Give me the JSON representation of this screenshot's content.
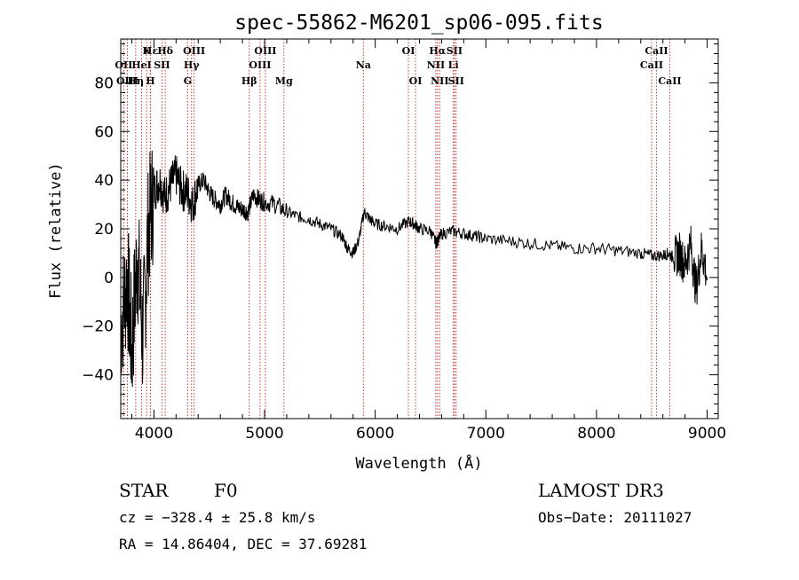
{
  "chart_data": {
    "type": "line",
    "title": "spec-55862-M6201_sp06-095.fits",
    "xlabel": "Wavelength (Å)",
    "ylabel": "Flux (relative)",
    "xlim": [
      3700,
      9100
    ],
    "ylim": [
      -58,
      98
    ],
    "x_ticks": [
      4000,
      5000,
      6000,
      7000,
      8000,
      9000
    ],
    "y_ticks": [
      -40,
      -20,
      0,
      20,
      40,
      60,
      80
    ],
    "series": [
      {
        "name": "flux",
        "color": "#000000",
        "x": [
          3700,
          3760,
          3800,
          3850,
          3900,
          3950,
          4000,
          4050,
          4100,
          4150,
          4200,
          4250,
          4300,
          4350,
          4400,
          4450,
          4500,
          4550,
          4600,
          4650,
          4700,
          4750,
          4800,
          4850,
          4900,
          4950,
          5000,
          5100,
          5200,
          5300,
          5400,
          5500,
          5600,
          5700,
          5750,
          5800,
          5850,
          5900,
          5950,
          6000,
          6100,
          6200,
          6300,
          6350,
          6400,
          6500,
          6550,
          6563,
          6600,
          6700,
          6800,
          6900,
          7000,
          7200,
          7400,
          7600,
          7800,
          8000,
          8200,
          8400,
          8500,
          8600,
          8650,
          8700,
          8750,
          8800,
          8850,
          8900,
          8950,
          9000
        ],
        "values": [
          -20,
          0,
          -30,
          10,
          -25,
          20,
          35,
          40,
          33,
          38,
          42,
          36,
          35,
          30,
          38,
          40,
          35,
          32,
          30,
          34,
          31,
          29,
          28,
          27,
          34,
          32,
          31,
          30,
          27,
          25,
          24,
          22,
          20,
          17,
          12,
          10,
          15,
          27,
          24,
          22,
          21,
          20,
          23,
          22,
          20,
          19,
          14,
          15,
          18,
          19,
          18,
          17,
          16,
          15,
          14,
          13,
          12,
          12,
          11,
          10,
          9,
          9,
          10,
          8,
          10,
          5,
          14,
          -5,
          12,
          0
        ]
      }
    ],
    "spectral_lines": [
      {
        "label": "Hε",
        "wavelength": 3970,
        "row": 1
      },
      {
        "label": "OII",
        "wavelength": 3727,
        "row": 2
      },
      {
        "label": "HeI",
        "wavelength": 3889,
        "row": 2
      },
      {
        "label": "SII",
        "wavelength": 4072,
        "row": 2
      },
      {
        "label": "OIII",
        "wavelength": 3760,
        "row": 3
      },
      {
        "label": "Hη",
        "wavelength": 3835,
        "row": 3
      },
      {
        "label": "H",
        "wavelength": 3968,
        "row": 3
      },
      {
        "label": "K",
        "wavelength": 3934,
        "row": 1
      },
      {
        "label": "Hδ",
        "wavelength": 4102,
        "row": 1
      },
      {
        "label": "OIII",
        "wavelength": 4363,
        "row": 1
      },
      {
        "label": "Hγ",
        "wavelength": 4340,
        "row": 2
      },
      {
        "label": "G",
        "wavelength": 4305,
        "row": 3
      },
      {
        "label": "Hβ",
        "wavelength": 4861,
        "row": 3
      },
      {
        "label": "OIII",
        "wavelength": 5007,
        "row": 1
      },
      {
        "label": "OIII",
        "wavelength": 4959,
        "row": 2
      },
      {
        "label": "Mg",
        "wavelength": 5175,
        "row": 3
      },
      {
        "label": "Na",
        "wavelength": 5893,
        "row": 2
      },
      {
        "label": "OI",
        "wavelength": 6300,
        "row": 1
      },
      {
        "label": "OI",
        "wavelength": 6364,
        "row": 3
      },
      {
        "label": "Hα",
        "wavelength": 6563,
        "row": 1
      },
      {
        "label": "NII",
        "wavelength": 6548,
        "row": 2
      },
      {
        "label": "NII",
        "wavelength": 6583,
        "row": 3
      },
      {
        "label": "SII",
        "wavelength": 6716,
        "row": 1
      },
      {
        "label": "Li",
        "wavelength": 6707,
        "row": 2
      },
      {
        "label": "SII",
        "wavelength": 6731,
        "row": 3
      },
      {
        "label": "CaII",
        "wavelength": 8542,
        "row": 1
      },
      {
        "label": "CaII",
        "wavelength": 8498,
        "row": 2
      },
      {
        "label": "CaII",
        "wavelength": 8662,
        "row": 3
      }
    ]
  },
  "info": {
    "object_type": "STAR",
    "subclass": "F0",
    "survey": "LAMOST DR3",
    "cz": "cz = −328.4 ± 25.8 km/s",
    "obs_date": "Obs−Date: 20111027",
    "coords": "RA =  14.86404, DEC =  37.69281"
  }
}
